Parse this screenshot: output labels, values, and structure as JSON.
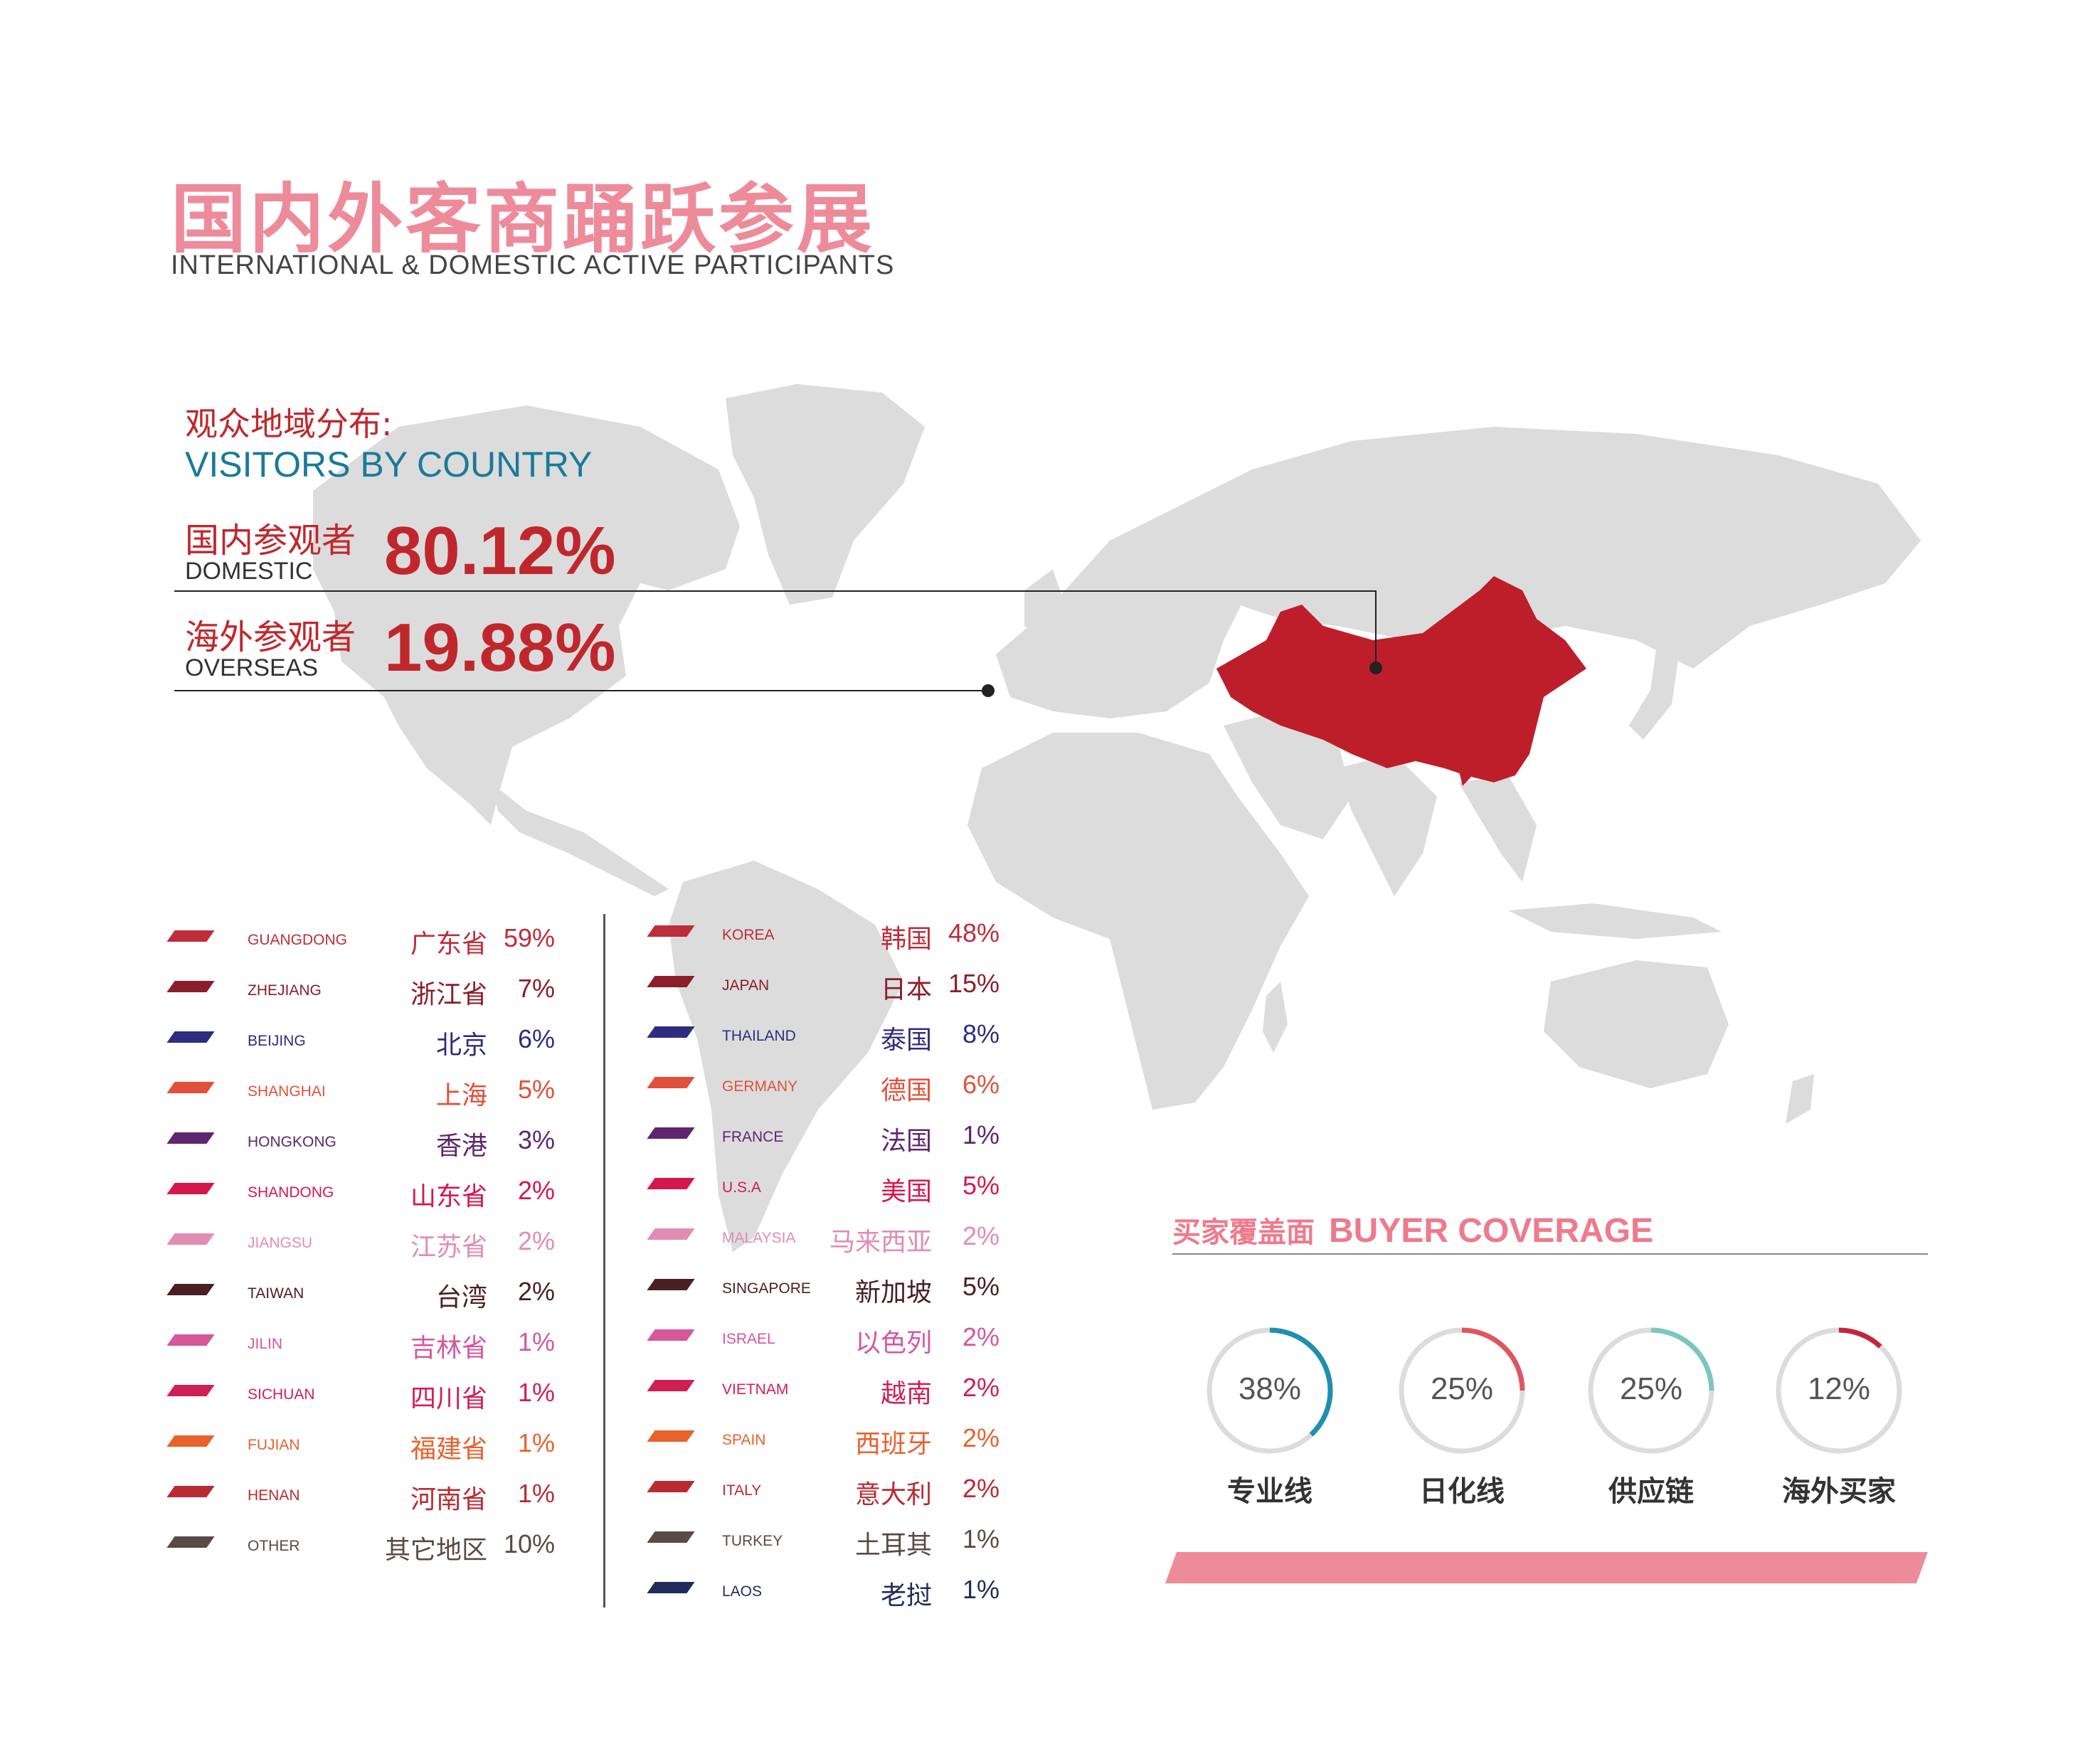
{
  "header": {
    "title_cn": "国内外客商踊跃参展",
    "title_en": "INTERNATIONAL & DOMESTIC ACTIVE PARTICIPANTS"
  },
  "visitors": {
    "heading_cn": "观众地域分布:",
    "heading_en": "VISITORS BY COUNTRY",
    "domestic": {
      "label_cn": "国内参观者",
      "label_en": "DOMESTIC",
      "value": "80.12%"
    },
    "overseas": {
      "label_cn": "海外参观者",
      "label_en": "OVERSEAS",
      "value": "19.88%"
    }
  },
  "colors": {
    "brand_pink": "#ee8b9b",
    "brand_red": "#c0272d",
    "accent_teal": "#1a7a9a",
    "map_gray": "#dcdcdc",
    "china_red": "#bd1e2a"
  },
  "domestic_list": [
    {
      "en": "GUANGDONG",
      "cn": "广东省",
      "pct": "59%",
      "color": "#be2d3b"
    },
    {
      "en": "ZHEJIANG",
      "cn": "浙江省",
      "pct": "7%",
      "color": "#8b1e2a"
    },
    {
      "en": "BEIJING",
      "cn": "北京",
      "pct": "6%",
      "color": "#2e2d7f"
    },
    {
      "en": "SHANGHAI",
      "cn": "上海",
      "pct": "5%",
      "color": "#e0503c"
    },
    {
      "en": "HONGKONG",
      "cn": "香港",
      "pct": "3%",
      "color": "#5e2670"
    },
    {
      "en": "SHANDONG",
      "cn": "山东省",
      "pct": "2%",
      "color": "#d6174e"
    },
    {
      "en": "JIANGSU",
      "cn": "江苏省",
      "pct": "2%",
      "color": "#e28cb4"
    },
    {
      "en": "TAIWAN",
      "cn": "台湾",
      "pct": "2%",
      "color": "#4a1f24"
    },
    {
      "en": "JILIN",
      "cn": "吉林省",
      "pct": "1%",
      "color": "#d6579a"
    },
    {
      "en": "SICHUAN",
      "cn": "四川省",
      "pct": "1%",
      "color": "#d01f55"
    },
    {
      "en": "FUJIAN",
      "cn": "福建省",
      "pct": "1%",
      "color": "#e8622c"
    },
    {
      "en": "HENAN",
      "cn": "河南省",
      "pct": "1%",
      "color": "#b92a33"
    },
    {
      "en": "OTHER",
      "cn": "其它地区",
      "pct": "10%",
      "color": "#5a4a45"
    }
  ],
  "overseas_list": [
    {
      "en": "KOREA",
      "cn": "韩国",
      "pct": "48%",
      "color": "#be2d3b"
    },
    {
      "en": "JAPAN",
      "cn": "日本",
      "pct": "15%",
      "color": "#8b1e2a"
    },
    {
      "en": "THAILAND",
      "cn": "泰国",
      "pct": "8%",
      "color": "#2e2d7f"
    },
    {
      "en": "GERMANY",
      "cn": "德国",
      "pct": "6%",
      "color": "#e0503c"
    },
    {
      "en": "FRANCE",
      "cn": "法国",
      "pct": "1%",
      "color": "#5e2670"
    },
    {
      "en": "U.S.A",
      "cn": "美国",
      "pct": "5%",
      "color": "#d6174e"
    },
    {
      "en": "MALAYSIA",
      "cn": "马来西亚",
      "pct": "2%",
      "color": "#e28cb4"
    },
    {
      "en": "SINGAPORE",
      "cn": "新加坡",
      "pct": "5%",
      "color": "#4a1f24"
    },
    {
      "en": "ISRAEL",
      "cn": "以色列",
      "pct": "2%",
      "color": "#d6579a"
    },
    {
      "en": "VIETNAM",
      "cn": "越南",
      "pct": "2%",
      "color": "#d01f55"
    },
    {
      "en": "SPAIN",
      "cn": "西班牙",
      "pct": "2%",
      "color": "#e8622c"
    },
    {
      "en": "ITALY",
      "cn": "意大利",
      "pct": "2%",
      "color": "#b92a33"
    },
    {
      "en": "TURKEY",
      "cn": "土耳其",
      "pct": "1%",
      "color": "#5a4a45"
    },
    {
      "en": "LAOS",
      "cn": "老挝",
      "pct": "1%",
      "color": "#1f2c5c"
    }
  ],
  "buyer": {
    "title_cn": "买家覆盖面",
    "title_en": "BUYER COVERAGE",
    "items": [
      {
        "value": "38%",
        "fraction": 0.38,
        "label": "专业线",
        "color": "#1f8fb0"
      },
      {
        "value": "25%",
        "fraction": 0.25,
        "label": "日化线",
        "color": "#e05560"
      },
      {
        "value": "25%",
        "fraction": 0.25,
        "label": "供应链",
        "color": "#7cc6c2"
      },
      {
        "value": "12%",
        "fraction": 0.12,
        "label": "海外买家",
        "color": "#c0273d"
      }
    ]
  }
}
